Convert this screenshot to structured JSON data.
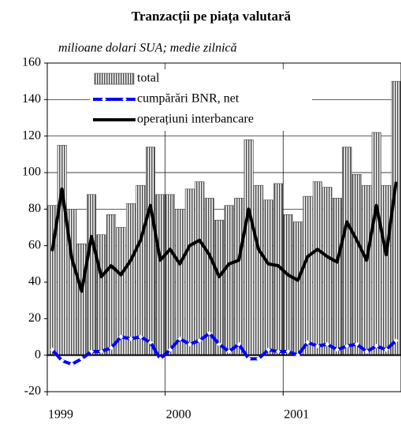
{
  "chart_data": {
    "type": "bar_line",
    "title": "Tranzacții pe piața valutară",
    "subtitle": "milioane dolari SUA; medie zilnică",
    "categories": [
      "1999",
      null,
      null,
      null,
      null,
      null,
      null,
      null,
      null,
      null,
      null,
      null,
      "2000",
      null,
      null,
      null,
      null,
      null,
      null,
      null,
      null,
      null,
      null,
      null,
      "2001",
      null,
      null,
      null,
      null,
      null,
      null,
      null,
      null,
      null,
      null,
      null
    ],
    "series": [
      {
        "name": "total",
        "kind": "bar",
        "color": "#808080",
        "values": [
          82,
          115,
          80,
          61,
          88,
          66,
          77,
          70,
          83,
          93,
          114,
          88,
          88,
          80,
          91,
          95,
          86,
          74,
          82,
          86,
          118,
          93,
          85,
          94,
          77,
          73,
          87,
          95,
          92,
          86,
          114,
          99,
          93,
          122,
          93,
          150
        ]
      },
      {
        "name": "cumpărări BNR, net",
        "kind": "line",
        "color": "#0000ff",
        "values": [
          3,
          -3,
          -5,
          -2,
          2,
          2,
          4,
          10,
          9,
          10,
          7,
          -2,
          3,
          9,
          6,
          8,
          12,
          6,
          2,
          6,
          -2,
          -2,
          3,
          2,
          2,
          0,
          7,
          5,
          6,
          3,
          5,
          6,
          2,
          5,
          3,
          8
        ]
      },
      {
        "name": "operațiuni interbancare",
        "kind": "line",
        "color": "#000000",
        "values": [
          57,
          91,
          53,
          35,
          65,
          43,
          49,
          44,
          52,
          63,
          82,
          52,
          58,
          50,
          60,
          63,
          55,
          43,
          50,
          52,
          80,
          58,
          50,
          49,
          44,
          41,
          54,
          58,
          54,
          51,
          73,
          63,
          52,
          82,
          55,
          95
        ]
      }
    ],
    "ylim": [
      -20,
      160
    ],
    "yticks": [
      -20,
      0,
      20,
      40,
      60,
      80,
      100,
      120,
      140,
      160
    ],
    "grid": true,
    "legend": "top-left"
  }
}
